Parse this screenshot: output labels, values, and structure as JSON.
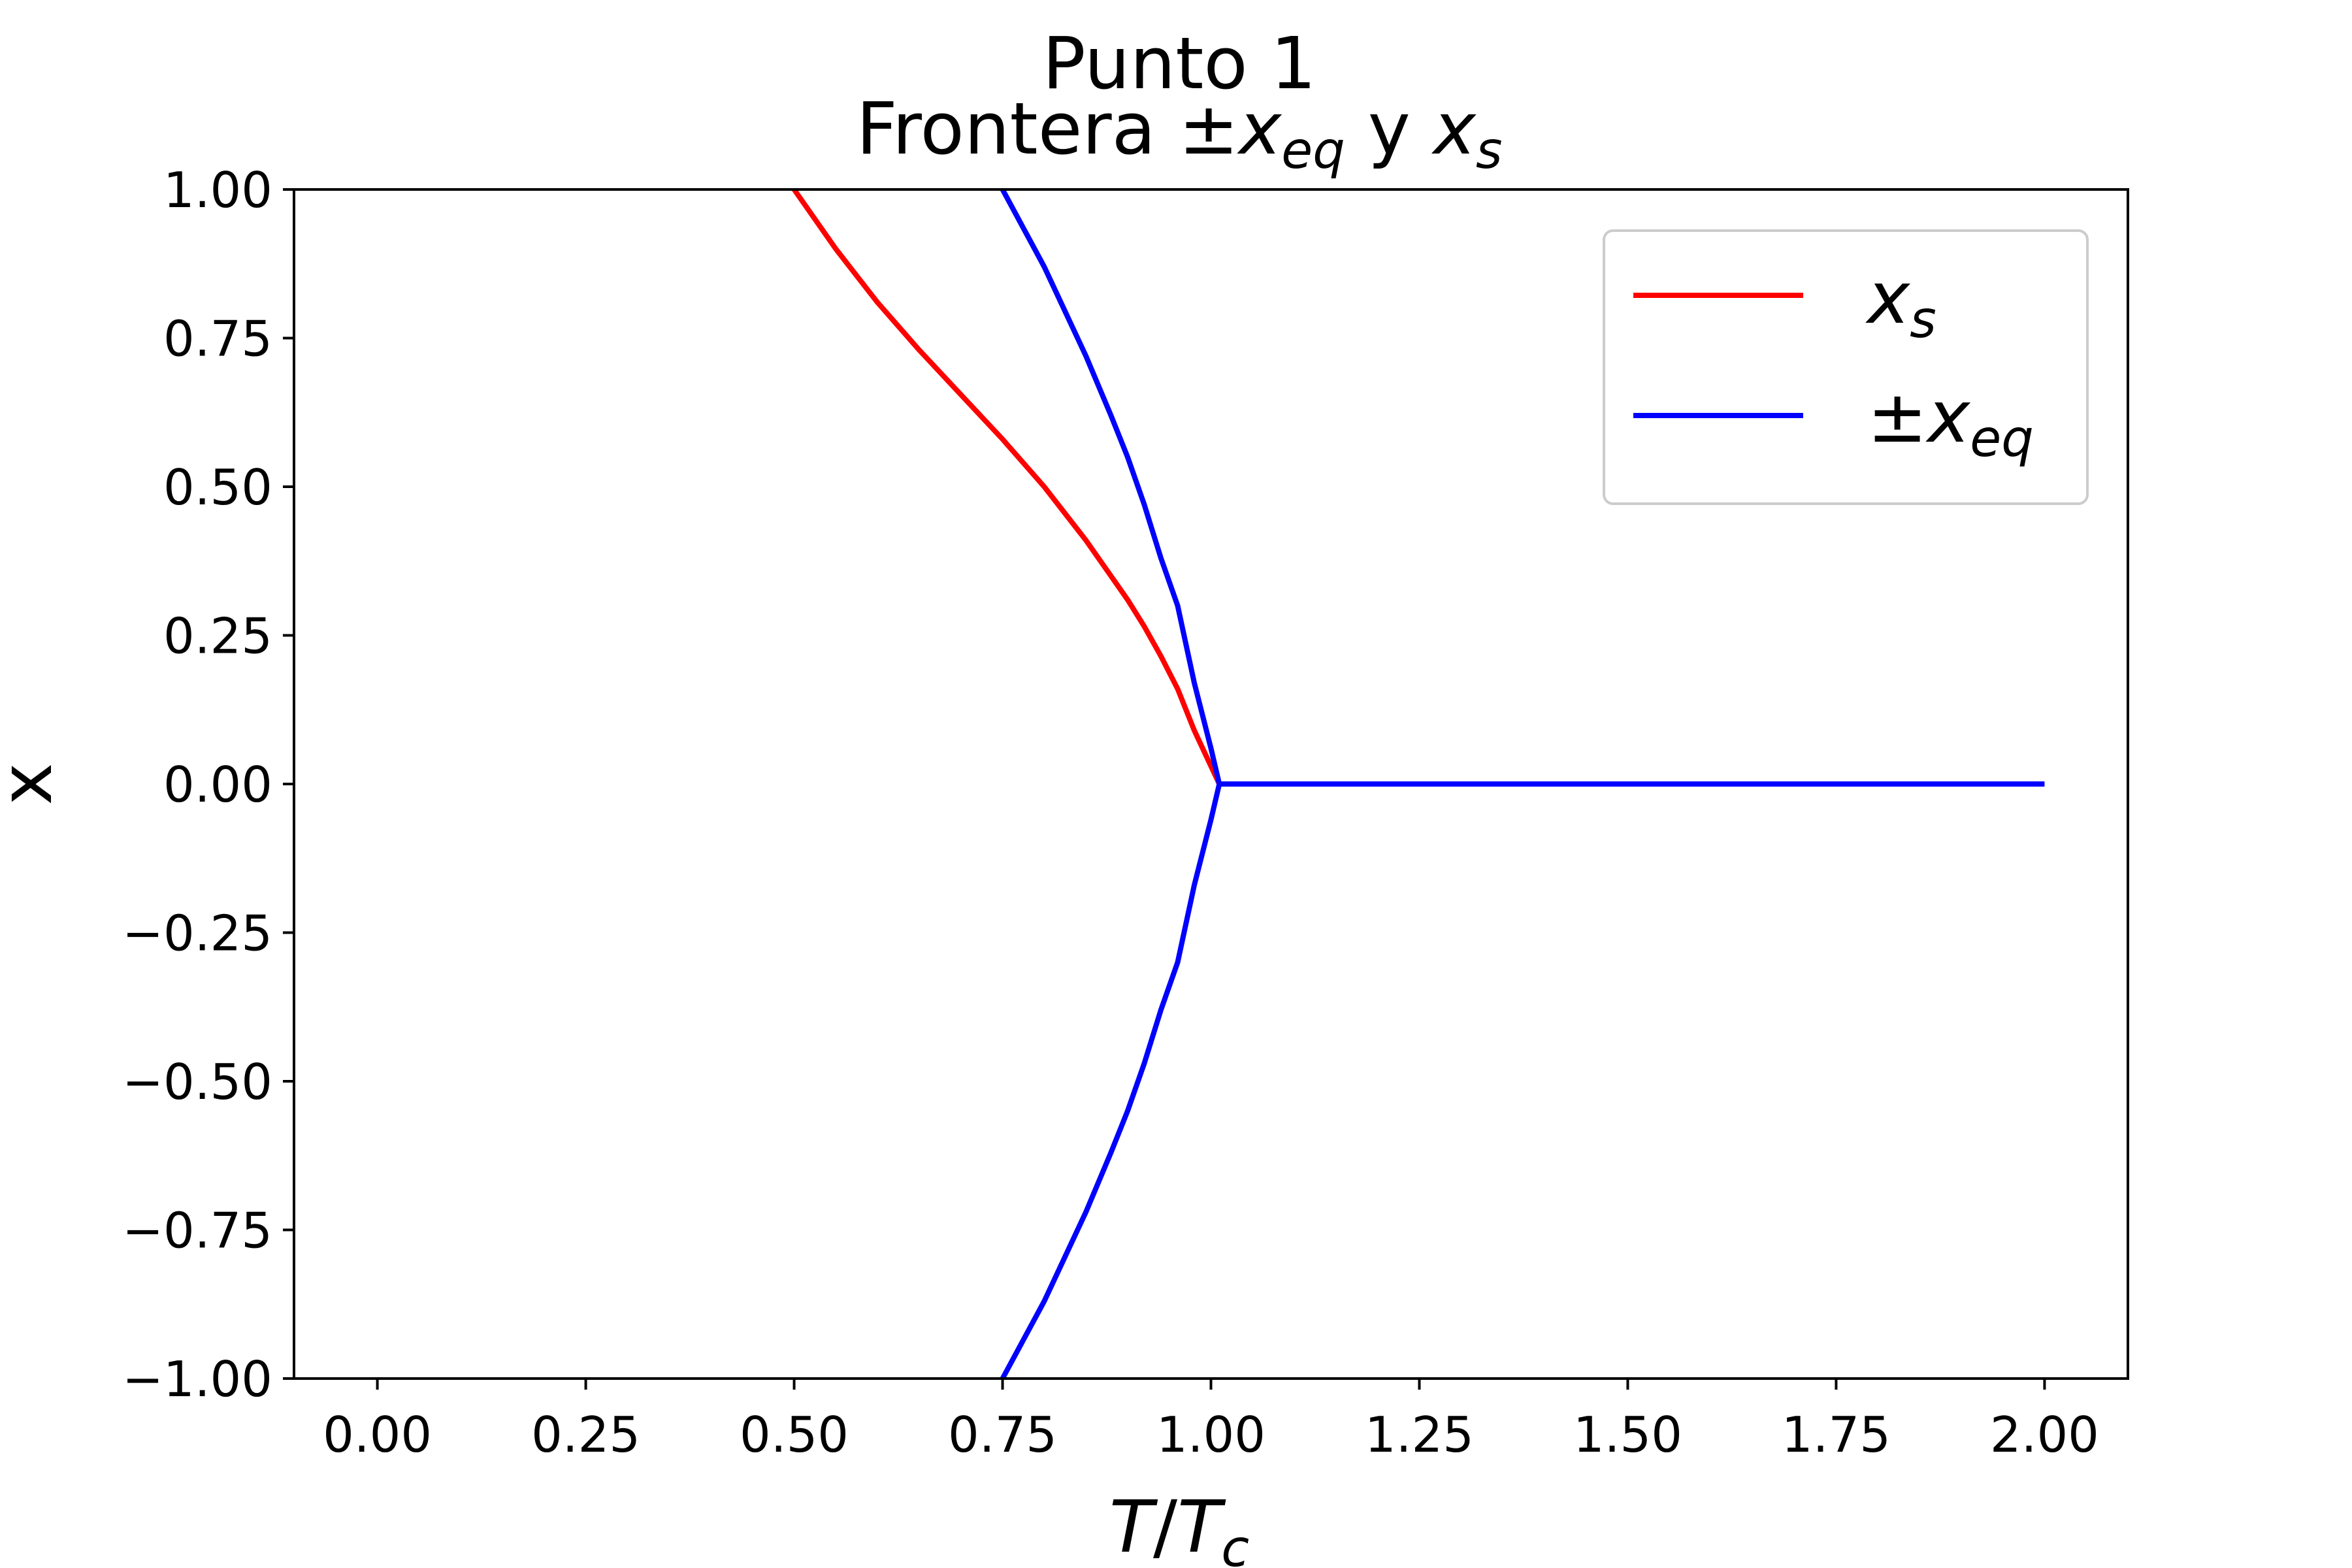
{
  "chart_data": {
    "type": "line",
    "title": "Punto 1",
    "subtitle": {
      "prefix": "Frontera ±",
      "var1": "x",
      "sub1": "eq",
      "mid": " y ",
      "var2": "x",
      "sub2": "s"
    },
    "xlabel": {
      "var1": "T",
      "sep": "/",
      "var2": "T",
      "sub": "c"
    },
    "ylabel": "x",
    "xlim": [
      -0.1,
      2.1
    ],
    "ylim": [
      -1.0,
      1.0
    ],
    "xticks": [
      0.0,
      0.25,
      0.5,
      0.75,
      1.0,
      1.25,
      1.5,
      1.75,
      2.0
    ],
    "xtick_labels": [
      "0.00",
      "0.25",
      "0.50",
      "0.75",
      "1.00",
      "1.25",
      "1.50",
      "1.75",
      "2.00"
    ],
    "yticks": [
      1.0,
      0.75,
      0.5,
      0.25,
      0.0,
      -0.25,
      -0.5,
      -0.75,
      -1.0
    ],
    "ytick_labels": [
      "1.00",
      "0.75",
      "0.50",
      "0.25",
      "0.00",
      "−0.25",
      "−0.50",
      "−0.75",
      "−1.00"
    ],
    "grid": false,
    "legend_position": "top-right",
    "series": [
      {
        "legend": {
          "var": "x",
          "sub": "s",
          "prefix": ""
        },
        "color": "#ff0000",
        "x": [
          0.5,
          0.55,
          0.6,
          0.65,
          0.7,
          0.75,
          0.8,
          0.85,
          0.88,
          0.9,
          0.92,
          0.94,
          0.96,
          0.98,
          1.0,
          1.01
        ],
        "y": [
          1.0,
          0.9,
          0.81,
          0.73,
          0.655,
          0.58,
          0.5,
          0.41,
          0.35,
          0.31,
          0.265,
          0.215,
          0.16,
          0.09,
          0.03,
          0.0
        ]
      },
      {
        "legend": {
          "var": "x",
          "sub": "eq",
          "prefix": "±"
        },
        "color": "#0000ff",
        "x": [
          0.75,
          0.8,
          0.85,
          0.88,
          0.9,
          0.92,
          0.94,
          0.96,
          0.98,
          1.0,
          1.01,
          1.25,
          1.5,
          1.75,
          2.0
        ],
        "y": [
          1.0,
          0.87,
          0.72,
          0.62,
          0.55,
          0.47,
          0.38,
          0.3,
          0.17,
          0.06,
          0.0,
          0.0,
          0.0,
          0.0,
          0.0
        ]
      },
      {
        "color": "#0000ff",
        "x": [
          0.75,
          0.8,
          0.85,
          0.88,
          0.9,
          0.92,
          0.94,
          0.96,
          0.98,
          1.0,
          1.01
        ],
        "y": [
          -1.0,
          -0.87,
          -0.72,
          -0.62,
          -0.55,
          -0.47,
          -0.38,
          -0.3,
          -0.17,
          -0.06,
          0.0
        ]
      }
    ]
  }
}
